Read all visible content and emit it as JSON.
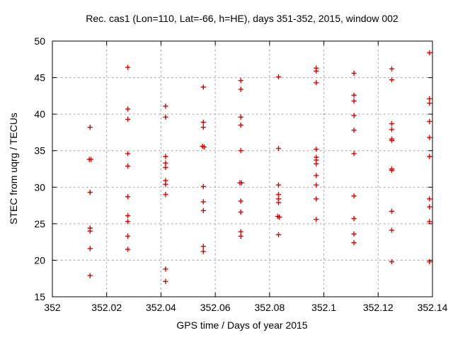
{
  "chart_data": {
    "type": "scatter",
    "title": "Rec. cas1 (Lon=110, Lat=-66, h=HE), days 351-352, 2015, window 002",
    "xlabel": "GPS time / Days of year 2015",
    "ylabel": "STEC from uqrg / TECUs",
    "xlim": [
      352,
      352.14
    ],
    "ylim": [
      15,
      50
    ],
    "xticks": [
      352,
      352.02,
      352.04,
      352.06,
      352.08,
      352.1,
      352.12,
      352.14
    ],
    "xtick_labels": [
      "352",
      "352.02",
      "352.04",
      "352.06",
      "352.08",
      "352.1",
      "352.12",
      "352.14"
    ],
    "yticks": [
      15,
      20,
      25,
      30,
      35,
      40,
      45,
      50
    ],
    "ytick_labels": [
      "15",
      "20",
      "25",
      "30",
      "35",
      "40",
      "45",
      "50"
    ],
    "grid": true,
    "legend": "none",
    "marker": "plus",
    "marker_color": "#dd0000",
    "grid_color": "#9c9c9c",
    "axis_color": "#000000",
    "points": [
      [
        352.0139,
        38.2
      ],
      [
        352.0136,
        33.8
      ],
      [
        352.0142,
        33.8
      ],
      [
        352.0139,
        29.3
      ],
      [
        352.0139,
        24.4
      ],
      [
        352.0139,
        24.0
      ],
      [
        352.0139,
        21.6
      ],
      [
        352.0139,
        17.9
      ],
      [
        352.0278,
        46.4
      ],
      [
        352.0278,
        40.7
      ],
      [
        352.0278,
        39.3
      ],
      [
        352.0278,
        34.6
      ],
      [
        352.0278,
        32.9
      ],
      [
        352.0278,
        28.7
      ],
      [
        352.0278,
        26.1
      ],
      [
        352.0278,
        25.3
      ],
      [
        352.0278,
        23.3
      ],
      [
        352.0278,
        21.5
      ],
      [
        352.0417,
        41.1
      ],
      [
        352.0417,
        39.6
      ],
      [
        352.0417,
        34.2
      ],
      [
        352.0417,
        33.3
      ],
      [
        352.0417,
        32.7
      ],
      [
        352.0417,
        30.9
      ],
      [
        352.0417,
        30.4
      ],
      [
        352.0417,
        29.0
      ],
      [
        352.0417,
        18.8
      ],
      [
        352.0417,
        17.1
      ],
      [
        352.0556,
        43.7
      ],
      [
        352.0556,
        38.9
      ],
      [
        352.0556,
        38.2
      ],
      [
        352.0553,
        35.6
      ],
      [
        352.0559,
        35.5
      ],
      [
        352.0556,
        30.1
      ],
      [
        352.0556,
        28.0
      ],
      [
        352.0556,
        26.8
      ],
      [
        352.0556,
        21.9
      ],
      [
        352.0556,
        21.2
      ],
      [
        352.0694,
        44.6
      ],
      [
        352.0694,
        43.4
      ],
      [
        352.0694,
        39.6
      ],
      [
        352.0694,
        38.5
      ],
      [
        352.0694,
        35.0
      ],
      [
        352.0691,
        30.6
      ],
      [
        352.0697,
        30.6
      ],
      [
        352.0694,
        28.1
      ],
      [
        352.0694,
        26.6
      ],
      [
        352.0694,
        23.9
      ],
      [
        352.0694,
        23.3
      ],
      [
        352.0833,
        45.1
      ],
      [
        352.0833,
        35.3
      ],
      [
        352.0833,
        30.3
      ],
      [
        352.0833,
        29.0
      ],
      [
        352.0833,
        28.4
      ],
      [
        352.0833,
        27.9
      ],
      [
        352.083,
        26.0
      ],
      [
        352.0836,
        25.9
      ],
      [
        352.0833,
        23.5
      ],
      [
        352.0972,
        46.3
      ],
      [
        352.0972,
        45.9
      ],
      [
        352.0972,
        44.3
      ],
      [
        352.0972,
        35.2
      ],
      [
        352.0972,
        34.1
      ],
      [
        352.0972,
        33.7
      ],
      [
        352.0972,
        33.2
      ],
      [
        352.0972,
        31.6
      ],
      [
        352.0972,
        30.3
      ],
      [
        352.0972,
        28.4
      ],
      [
        352.0972,
        25.6
      ],
      [
        352.1111,
        45.6
      ],
      [
        352.1111,
        42.6
      ],
      [
        352.1111,
        41.8
      ],
      [
        352.1111,
        39.8
      ],
      [
        352.1111,
        37.8
      ],
      [
        352.1111,
        34.6
      ],
      [
        352.1111,
        28.8
      ],
      [
        352.1111,
        25.7
      ],
      [
        352.1111,
        23.6
      ],
      [
        352.1111,
        22.4
      ],
      [
        352.125,
        46.2
      ],
      [
        352.125,
        44.7
      ],
      [
        352.125,
        38.7
      ],
      [
        352.125,
        37.9
      ],
      [
        352.125,
        36.6
      ],
      [
        352.125,
        36.4
      ],
      [
        352.125,
        32.5
      ],
      [
        352.125,
        32.3
      ],
      [
        352.125,
        26.7
      ],
      [
        352.125,
        24.1
      ],
      [
        352.125,
        19.8
      ],
      [
        352.1389,
        48.4
      ],
      [
        352.1389,
        42.1
      ],
      [
        352.1389,
        41.5
      ],
      [
        352.1389,
        39.0
      ],
      [
        352.1389,
        36.8
      ],
      [
        352.1389,
        34.2
      ],
      [
        352.1389,
        28.4
      ],
      [
        352.1389,
        27.3
      ],
      [
        352.1389,
        25.3
      ],
      [
        352.1389,
        19.8
      ]
    ]
  }
}
